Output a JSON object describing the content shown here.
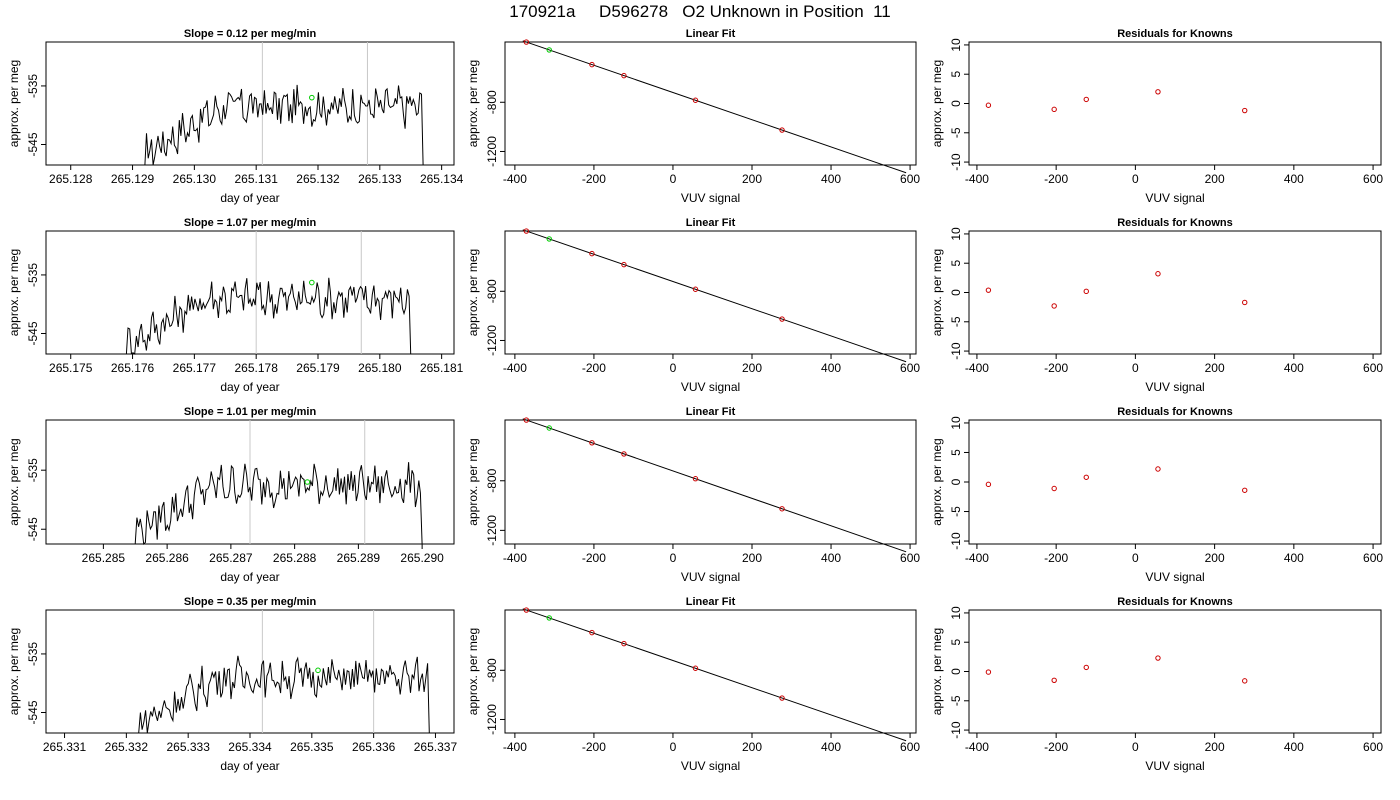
{
  "title": "170921a     D596278   O2 Unknown in Position  11",
  "colors": {
    "trace": "#000000",
    "fit_line": "#000000",
    "known_points": "#cc0000",
    "unknown_point": "#00cc00",
    "vline": "#c8c8c8",
    "frame": "#000000"
  },
  "fit": {
    "slope": -1.106,
    "intercept": -720.6
  },
  "known_x": [
    -371,
    -205,
    -124,
    57,
    276
  ],
  "unknown_x": -313,
  "chart_data": [
    {
      "type": "line",
      "title": "Slope =  0.12  per meg/min",
      "xlabel": "day of year",
      "ylabel": "approx. per meg",
      "xlim": [
        265.1276,
        265.1342
      ],
      "ylim": [
        -548.5,
        -527.5
      ],
      "xticks": [
        265.128,
        265.129,
        265.13,
        265.131,
        265.132,
        265.133,
        265.134
      ],
      "xtick_labels": [
        "265.128",
        "265.129",
        "265.130",
        "265.131",
        "265.132",
        "265.133",
        "265.134"
      ],
      "yticks": [
        -535,
        -545
      ],
      "ytick_labels": [
        "-535",
        "-545"
      ],
      "vlines": [
        265.1311,
        265.1328
      ],
      "trace_start": 265.1292,
      "trace_end": 265.1337,
      "trace_base": -538.5,
      "unknown_point": {
        "x": 265.1319,
        "y": -537.0
      }
    },
    {
      "type": "scatter",
      "title": "Linear Fit",
      "xlabel": "VUV signal",
      "ylabel": "approx. per meg",
      "xlim": [
        -425,
        615
      ],
      "ylim": [
        -1310,
        -310
      ],
      "xticks": [
        -400,
        -200,
        0,
        200,
        400,
        600
      ],
      "xtick_labels": [
        "-400",
        "-200",
        "0",
        "200",
        "400",
        "600"
      ],
      "yticks": [
        -800,
        -1200
      ],
      "ytick_labels": [
        "-800",
        "-1200"
      ],
      "line_x": [
        -380,
        590
      ]
    },
    {
      "type": "scatter",
      "title": "Residuals for Knowns",
      "xlabel": "VUV signal",
      "ylabel": "approx. per meg",
      "xlim": [
        -420,
        620
      ],
      "ylim": [
        -10.5,
        10.5
      ],
      "xticks": [
        -400,
        -200,
        0,
        200,
        400,
        600
      ],
      "xtick_labels": [
        "-400",
        "-200",
        "0",
        "200",
        "400",
        "600"
      ],
      "yticks": [
        -10,
        -5,
        0,
        5,
        10
      ],
      "ytick_labels": [
        "-10",
        "-5",
        "0",
        "5",
        "10"
      ],
      "residuals": [
        -0.3,
        -1.0,
        0.7,
        2.0,
        -1.2
      ]
    },
    {
      "type": "line",
      "title": "Slope =  1.07  per meg/min",
      "xlabel": "day of year",
      "ylabel": "approx. per meg",
      "xlim": [
        265.1746,
        265.1812
      ],
      "ylim": [
        -548.5,
        -527.5
      ],
      "xticks": [
        265.175,
        265.176,
        265.177,
        265.178,
        265.179,
        265.18,
        265.181
      ],
      "xtick_labels": [
        "265.175",
        "265.176",
        "265.177",
        "265.178",
        "265.179",
        "265.180",
        "265.181"
      ],
      "yticks": [
        -535,
        -545
      ],
      "ytick_labels": [
        "-535",
        "-545"
      ],
      "vlines": [
        265.178,
        265.1797
      ],
      "trace_start": 265.1759,
      "trace_end": 265.1805,
      "trace_base": -539.0,
      "unknown_point": {
        "x": 265.1789,
        "y": -536.3
      }
    },
    {
      "type": "scatter",
      "title": "Linear Fit",
      "xlabel": "VUV signal",
      "ylabel": "approx. per meg",
      "xlim": [
        -425,
        615
      ],
      "ylim": [
        -1310,
        -310
      ],
      "xticks": [
        -400,
        -200,
        0,
        200,
        400,
        600
      ],
      "xtick_labels": [
        "-400",
        "-200",
        "0",
        "200",
        "400",
        "600"
      ],
      "yticks": [
        -800,
        -1200
      ],
      "ytick_labels": [
        "-800",
        "-1200"
      ],
      "line_x": [
        -380,
        590
      ]
    },
    {
      "type": "scatter",
      "title": "Residuals for Knowns",
      "xlabel": "VUV signal",
      "ylabel": "approx. per meg",
      "xlim": [
        -420,
        620
      ],
      "ylim": [
        -10.5,
        10.5
      ],
      "xticks": [
        -400,
        -200,
        0,
        200,
        400,
        600
      ],
      "xtick_labels": [
        "-400",
        "-200",
        "0",
        "200",
        "400",
        "600"
      ],
      "yticks": [
        -10,
        -5,
        0,
        5,
        10
      ],
      "ytick_labels": [
        "-10",
        "-5",
        "0",
        "5",
        "10"
      ],
      "residuals": [
        0.4,
        -2.3,
        0.2,
        3.2,
        -1.7
      ]
    },
    {
      "type": "line",
      "title": "Slope =  1.01  per meg/min",
      "xlabel": "day of year",
      "ylabel": "approx. per meg",
      "xlim": [
        265.2841,
        265.2905
      ],
      "ylim": [
        -547.5,
        -526.5
      ],
      "xticks": [
        265.285,
        265.286,
        265.287,
        265.288,
        265.289,
        265.29
      ],
      "xtick_labels": [
        "265.285",
        "265.286",
        "265.287",
        "265.288",
        "265.289",
        "265.290"
      ],
      "yticks": [
        -535,
        -545
      ],
      "ytick_labels": [
        "-535",
        "-545"
      ],
      "vlines": [
        265.2873,
        265.2891
      ],
      "trace_start": 265.2855,
      "trace_end": 265.29,
      "trace_base": -537.5,
      "unknown_point": {
        "x": 265.2882,
        "y": -537.0
      }
    },
    {
      "type": "scatter",
      "title": "Linear Fit",
      "xlabel": "VUV signal",
      "ylabel": "approx. per meg",
      "xlim": [
        -425,
        615
      ],
      "ylim": [
        -1310,
        -310
      ],
      "xticks": [
        -400,
        -200,
        0,
        200,
        400,
        600
      ],
      "xtick_labels": [
        "-400",
        "-200",
        "0",
        "200",
        "400",
        "600"
      ],
      "yticks": [
        -800,
        -1200
      ],
      "ytick_labels": [
        "-800",
        "-1200"
      ],
      "line_x": [
        -380,
        590
      ]
    },
    {
      "type": "scatter",
      "title": "Residuals for Knowns",
      "xlabel": "VUV signal",
      "ylabel": "approx. per meg",
      "xlim": [
        -420,
        620
      ],
      "ylim": [
        -10.5,
        10.5
      ],
      "xticks": [
        -400,
        -200,
        0,
        200,
        400,
        600
      ],
      "xtick_labels": [
        "-400",
        "-200",
        "0",
        "200",
        "400",
        "600"
      ],
      "yticks": [
        -10,
        -5,
        0,
        5,
        10
      ],
      "ytick_labels": [
        "-10",
        "-5",
        "0",
        "5",
        "10"
      ],
      "residuals": [
        -0.4,
        -1.1,
        0.8,
        2.2,
        -1.4
      ]
    },
    {
      "type": "line",
      "title": "Slope =  0.35  per meg/min",
      "xlabel": "day of year",
      "ylabel": "approx. per meg",
      "xlim": [
        265.3307,
        265.3373
      ],
      "ylim": [
        -548.5,
        -527.5
      ],
      "xticks": [
        265.331,
        265.332,
        265.333,
        265.334,
        265.335,
        265.336,
        265.337
      ],
      "xtick_labels": [
        "265.331",
        "265.332",
        "265.333",
        "265.334",
        "265.335",
        "265.336",
        "265.337"
      ],
      "yticks": [
        -535,
        -545
      ],
      "ytick_labels": [
        "-535",
        "-545"
      ],
      "vlines": [
        265.3342,
        265.336
      ],
      "trace_start": 265.3322,
      "trace_end": 265.3369,
      "trace_base": -539.0,
      "unknown_point": {
        "x": 265.3351,
        "y": -537.8
      }
    },
    {
      "type": "scatter",
      "title": "Linear Fit",
      "xlabel": "VUV signal",
      "ylabel": "approx. per meg",
      "xlim": [
        -425,
        615
      ],
      "ylim": [
        -1310,
        -310
      ],
      "xticks": [
        -400,
        -200,
        0,
        200,
        400,
        600
      ],
      "xtick_labels": [
        "-400",
        "-200",
        "0",
        "200",
        "400",
        "600"
      ],
      "yticks": [
        -800,
        -1200
      ],
      "ytick_labels": [
        "-800",
        "-1200"
      ],
      "line_x": [
        -380,
        590
      ]
    },
    {
      "type": "scatter",
      "title": "Residuals for Knowns",
      "xlabel": "VUV signal",
      "ylabel": "approx. per meg",
      "xlim": [
        -420,
        620
      ],
      "ylim": [
        -10.5,
        10.5
      ],
      "xticks": [
        -400,
        -200,
        0,
        200,
        400,
        600
      ],
      "xtick_labels": [
        "-400",
        "-200",
        "0",
        "200",
        "400",
        "600"
      ],
      "yticks": [
        -10,
        -5,
        0,
        5,
        10
      ],
      "ytick_labels": [
        "-10",
        "-5",
        "0",
        "5",
        "10"
      ],
      "residuals": [
        -0.1,
        -1.5,
        0.7,
        2.3,
        -1.6
      ]
    }
  ]
}
